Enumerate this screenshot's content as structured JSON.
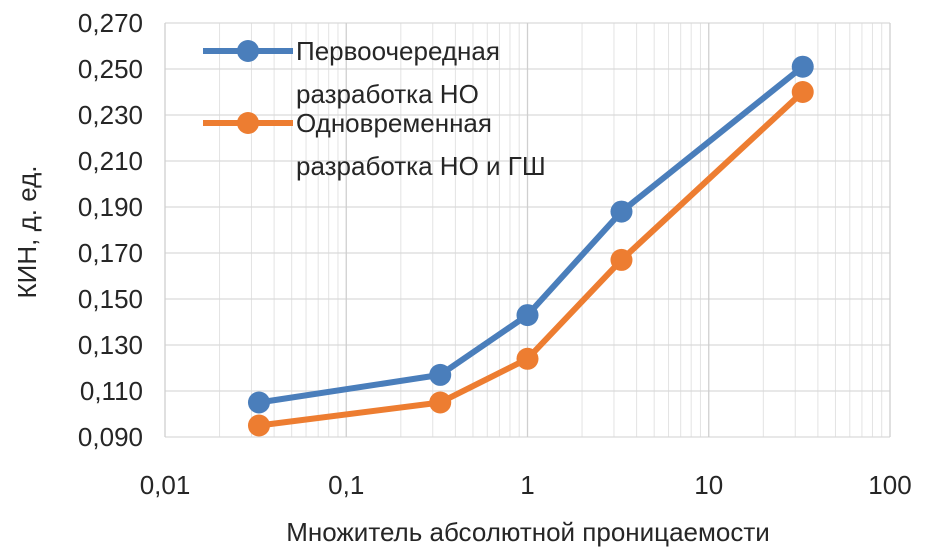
{
  "chart_data": {
    "type": "line",
    "title": "",
    "xlabel": "Множитель абсолютной проницаемости",
    "ylabel": "КИН, д. ед.",
    "x_scale": "log",
    "xlim": [
      0.01,
      100
    ],
    "ylim": [
      0.09,
      0.27
    ],
    "x_ticks": [
      0.01,
      0.1,
      1,
      10,
      100
    ],
    "x_tick_labels": [
      "0,01",
      "0,1",
      "1",
      "10",
      "100"
    ],
    "y_ticks": [
      0.09,
      0.11,
      0.13,
      0.15,
      0.17,
      0.19,
      0.21,
      0.23,
      0.25,
      0.27
    ],
    "y_tick_labels": [
      "0,090",
      "0,110",
      "0,130",
      "0,150",
      "0,170",
      "0,190",
      "0,210",
      "0,230",
      "0,250",
      "0,270"
    ],
    "grid": true,
    "legend_position": "top-left",
    "x": [
      0.033,
      0.33,
      1,
      3.3,
      33
    ],
    "series": [
      {
        "name_lines": [
          "Первоочередная",
          "разработка НО"
        ],
        "color": "#4a7ebb",
        "values": [
          0.105,
          0.117,
          0.143,
          0.188,
          0.251
        ]
      },
      {
        "name_lines": [
          "Одновременная",
          "разработка НО и ГШ"
        ],
        "color": "#ed7d31",
        "values": [
          0.095,
          0.105,
          0.124,
          0.167,
          0.24
        ]
      }
    ]
  }
}
